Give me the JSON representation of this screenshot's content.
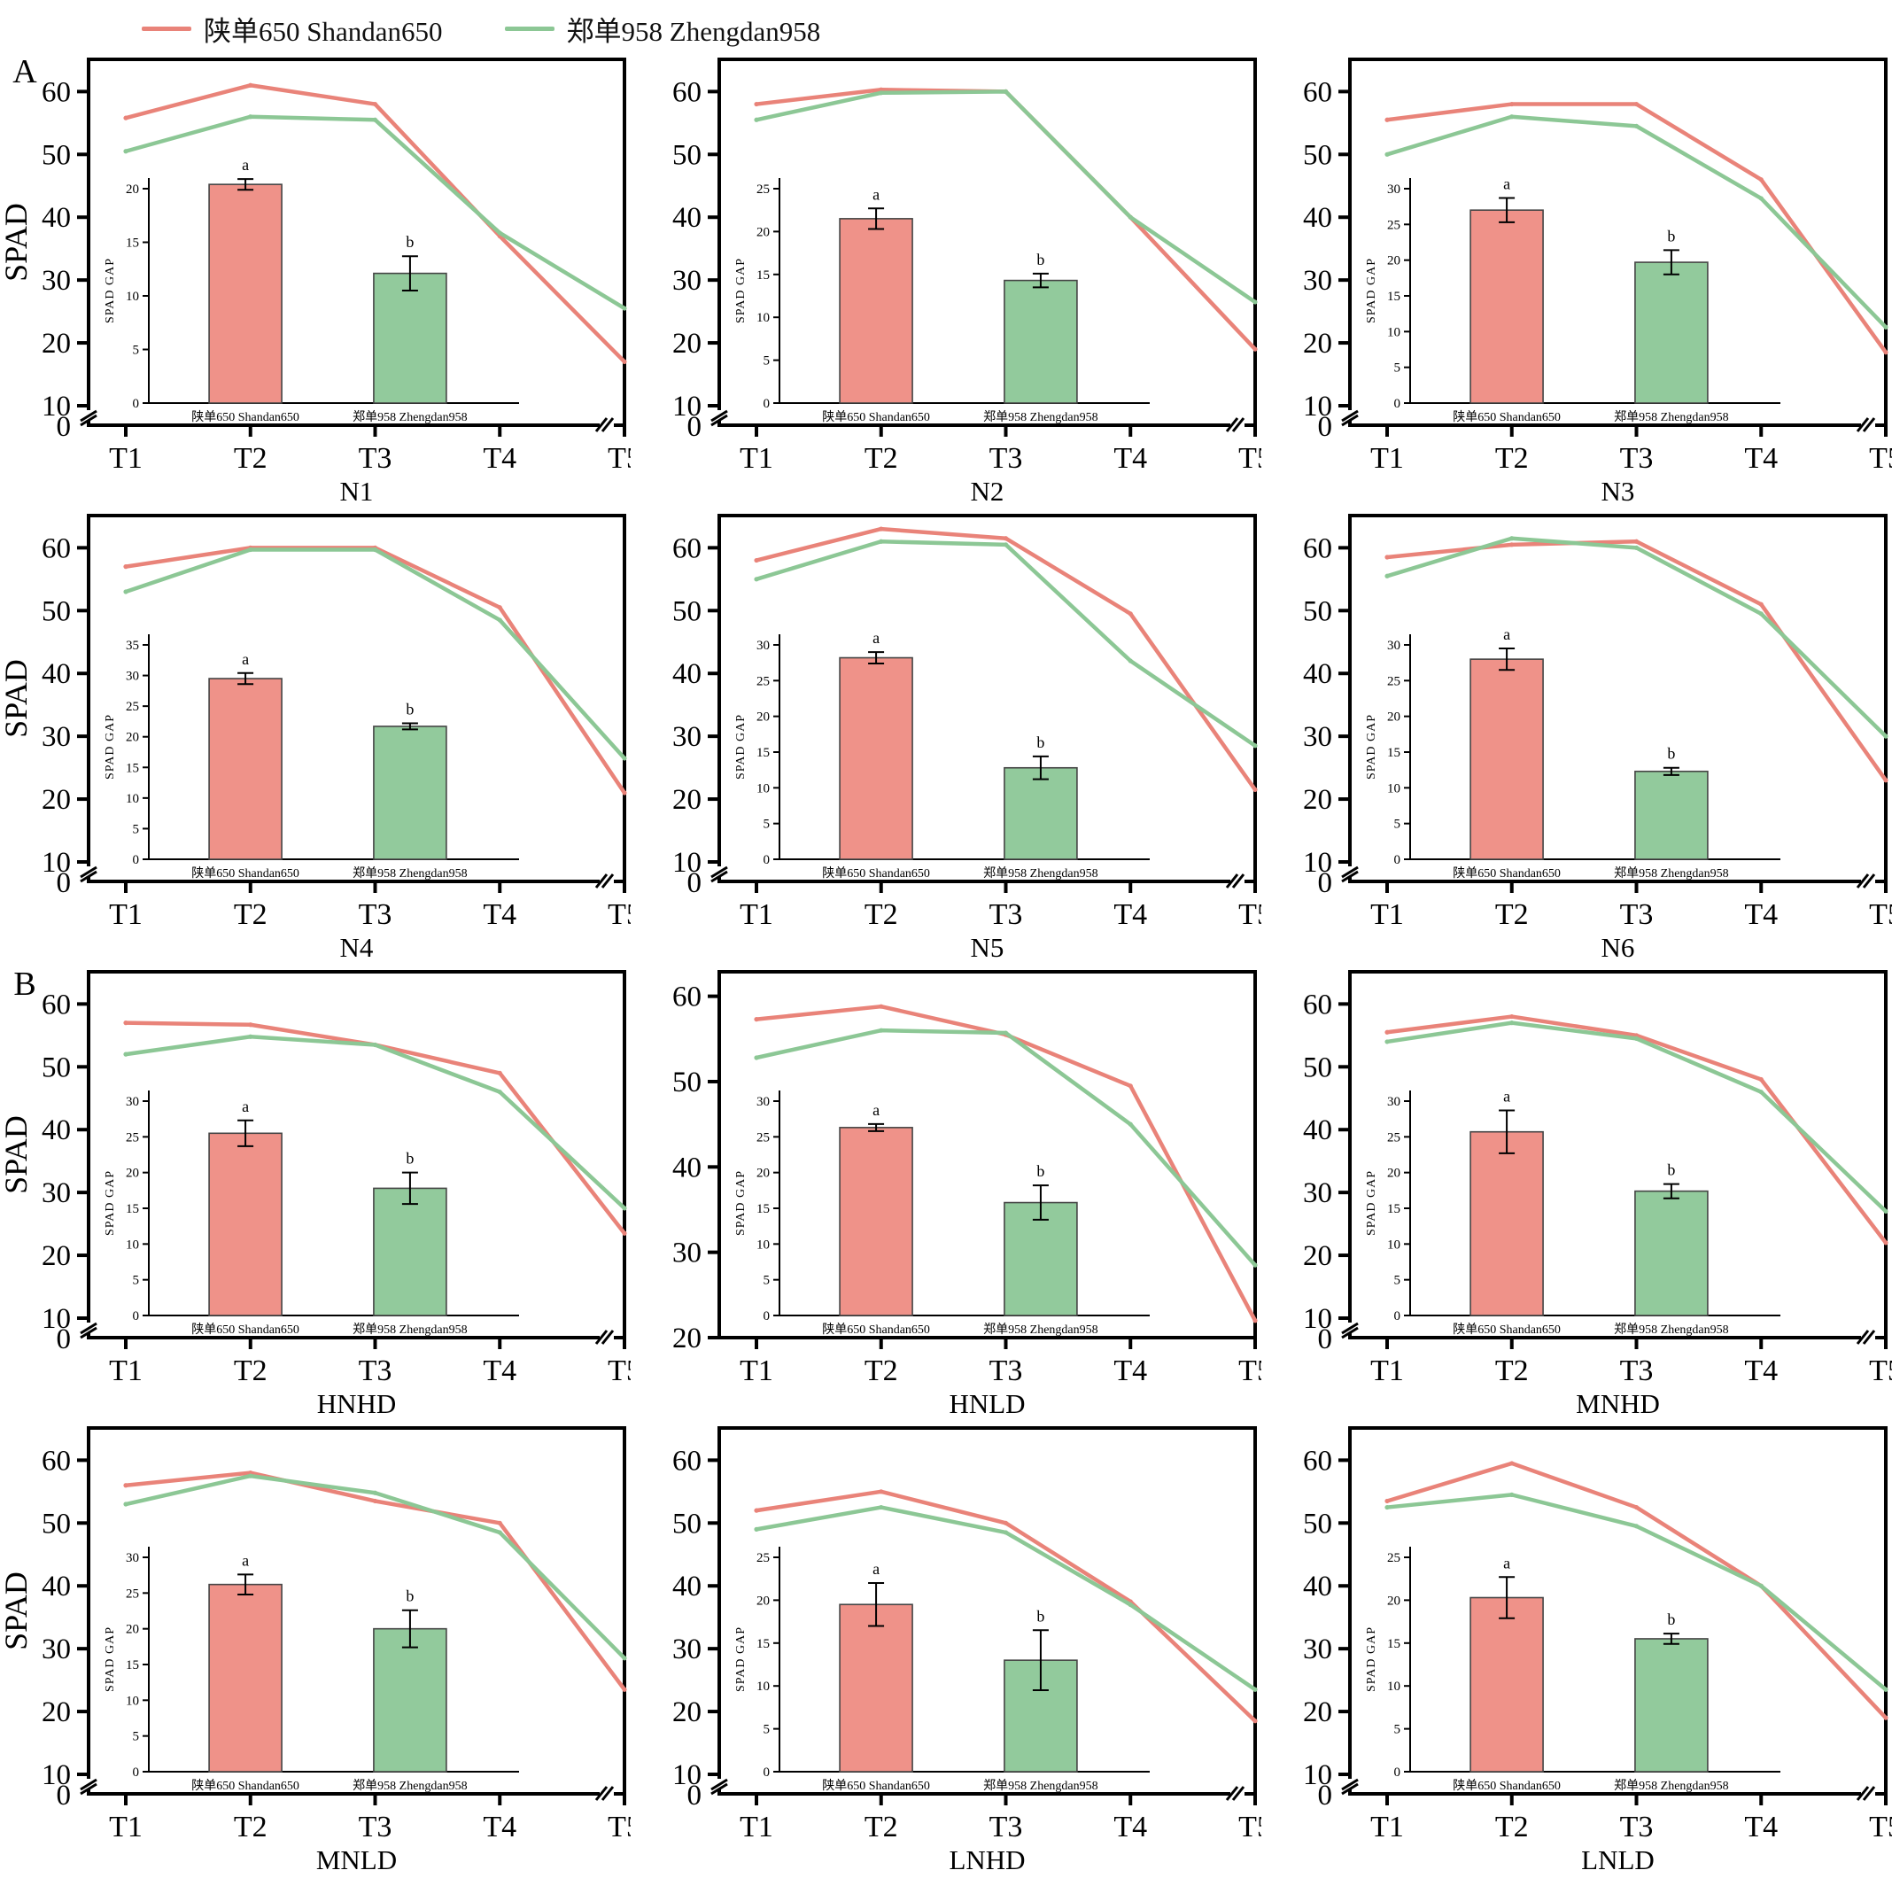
{
  "legend": {
    "entries": [
      {
        "label": "陕单650 Shandan650",
        "color": "#e98379"
      },
      {
        "label": "郑单958 Zhengdan958",
        "color": "#8cc795"
      }
    ]
  },
  "colors": {
    "shandan_line": "#e98379",
    "zhengdan_line": "#8cc795",
    "shandan_bar": "#ef9289",
    "zhengdan_bar": "#92ca9c",
    "bar_edge": "#454545",
    "axis": "#000000"
  },
  "axes": {
    "ylabel": "SPAD",
    "x_categories": [
      "T1",
      "T2",
      "T3",
      "T4",
      "T5"
    ],
    "inset_ylabel": "SPAD GAP",
    "inset_categories": [
      "陕单650 Shandan650",
      "郑单958 Zhengdan958"
    ],
    "sig_letters": [
      "a",
      "b"
    ]
  },
  "chart_data": [
    {
      "type": "line",
      "title": "N1",
      "panel": "A",
      "show_ylabel": true,
      "ylim": [
        10,
        60
      ],
      "broken_axis": true,
      "x": [
        "T1",
        "T2",
        "T3",
        "T4",
        "T5"
      ],
      "series": [
        {
          "name": "陕单650 Shandan650",
          "values": [
            55.8,
            61,
            58,
            37,
            17
          ]
        },
        {
          "name": "郑单958 Zhengdan958",
          "values": [
            50.5,
            56,
            55.5,
            37.5,
            25.5
          ]
        }
      ],
      "inset": {
        "type": "bar",
        "ylabel": "SPAD GAP",
        "ymax": 20,
        "bars": [
          {
            "label": "陕单650 Shandan650",
            "value": 20.4,
            "err": 0.5,
            "letter": "a"
          },
          {
            "label": "郑单958 Zhengdan958",
            "value": 12.1,
            "err": 1.6,
            "letter": "b"
          }
        ]
      }
    },
    {
      "type": "line",
      "title": "N2",
      "panel": null,
      "show_ylabel": false,
      "ylim": [
        10,
        60
      ],
      "broken_axis": true,
      "x": [
        "T1",
        "T2",
        "T3",
        "T4",
        "T5"
      ],
      "series": [
        {
          "name": "陕单650 Shandan650",
          "values": [
            58,
            60.3,
            60,
            40,
            19
          ]
        },
        {
          "name": "郑单958 Zhengdan958",
          "values": [
            55.5,
            59.8,
            60,
            40,
            26.5
          ]
        }
      ],
      "inset": {
        "type": "bar",
        "ylabel": "SPAD GAP",
        "ymax": 25,
        "bars": [
          {
            "label": "陕单650 Shandan650",
            "value": 21.5,
            "err": 1.2,
            "letter": "a"
          },
          {
            "label": "郑单958 Zhengdan958",
            "value": 14.3,
            "err": 0.8,
            "letter": "b"
          }
        ]
      }
    },
    {
      "type": "line",
      "title": "N3",
      "panel": null,
      "show_ylabel": false,
      "ylim": [
        10,
        60
      ],
      "broken_axis": true,
      "x": [
        "T1",
        "T2",
        "T3",
        "T4",
        "T5"
      ],
      "series": [
        {
          "name": "陕单650 Shandan650",
          "values": [
            55.5,
            58,
            58,
            46,
            18.5
          ]
        },
        {
          "name": "郑单958 Zhengdan958",
          "values": [
            50,
            56,
            54.5,
            43,
            22.5
          ]
        }
      ],
      "inset": {
        "type": "bar",
        "ylabel": "SPAD GAP",
        "ymax": 30,
        "bars": [
          {
            "label": "陕单650 Shandan650",
            "value": 27,
            "err": 1.7,
            "letter": "a"
          },
          {
            "label": "郑单958 Zhengdan958",
            "value": 19.7,
            "err": 1.7,
            "letter": "b"
          }
        ]
      }
    },
    {
      "type": "line",
      "title": "N4",
      "panel": null,
      "show_ylabel": true,
      "ylim": [
        10,
        60
      ],
      "broken_axis": true,
      "x": [
        "T1",
        "T2",
        "T3",
        "T4",
        "T5"
      ],
      "series": [
        {
          "name": "陕单650 Shandan650",
          "values": [
            57,
            60,
            60,
            50.5,
            21
          ]
        },
        {
          "name": "郑单958 Zhengdan958",
          "values": [
            53,
            59.7,
            59.7,
            48.5,
            26.5
          ]
        }
      ],
      "inset": {
        "type": "bar",
        "ylabel": "SPAD GAP",
        "ymax": 35,
        "bars": [
          {
            "label": "陕单650 Shandan650",
            "value": 29.5,
            "err": 0.9,
            "letter": "a"
          },
          {
            "label": "郑单958 Zhengdan958",
            "value": 21.7,
            "err": 0.5,
            "letter": "b"
          }
        ]
      }
    },
    {
      "type": "line",
      "title": "N5",
      "panel": null,
      "show_ylabel": false,
      "ylim": [
        10,
        60
      ],
      "broken_axis": true,
      "x": [
        "T1",
        "T2",
        "T3",
        "T4",
        "T5"
      ],
      "series": [
        {
          "name": "陕单650 Shandan650",
          "values": [
            58,
            63,
            61.5,
            49.5,
            21.5
          ]
        },
        {
          "name": "郑单958 Zhengdan958",
          "values": [
            55,
            61,
            60.5,
            42,
            28.5
          ]
        }
      ],
      "inset": {
        "type": "bar",
        "ylabel": "SPAD GAP",
        "ymax": 30,
        "bars": [
          {
            "label": "陕单650 Shandan650",
            "value": 28.2,
            "err": 0.8,
            "letter": "a"
          },
          {
            "label": "郑单958 Zhengdan958",
            "value": 12.8,
            "err": 1.6,
            "letter": "b"
          }
        ]
      }
    },
    {
      "type": "line",
      "title": "N6",
      "panel": null,
      "show_ylabel": false,
      "ylim": [
        10,
        60
      ],
      "broken_axis": true,
      "x": [
        "T1",
        "T2",
        "T3",
        "T4",
        "T5"
      ],
      "series": [
        {
          "name": "陕单650 Shandan650",
          "values": [
            58.5,
            60.5,
            61,
            51,
            23
          ]
        },
        {
          "name": "郑单958 Zhengdan958",
          "values": [
            55.5,
            61.5,
            60,
            49.5,
            30
          ]
        }
      ],
      "inset": {
        "type": "bar",
        "ylabel": "SPAD GAP",
        "ymax": 30,
        "bars": [
          {
            "label": "陕单650 Shandan650",
            "value": 28,
            "err": 1.5,
            "letter": "a"
          },
          {
            "label": "郑单958 Zhengdan958",
            "value": 12.3,
            "err": 0.5,
            "letter": "b"
          }
        ]
      }
    },
    {
      "type": "line",
      "title": "HNHD",
      "panel": "B",
      "show_ylabel": true,
      "ylim": [
        10,
        60
      ],
      "broken_axis": true,
      "x": [
        "T1",
        "T2",
        "T3",
        "T4",
        "T5"
      ],
      "series": [
        {
          "name": "陕单650 Shandan650",
          "values": [
            57,
            56.7,
            53.5,
            49,
            23.5
          ]
        },
        {
          "name": "郑单958 Zhengdan958",
          "values": [
            52,
            54.8,
            53.5,
            46,
            27.5
          ]
        }
      ],
      "inset": {
        "type": "bar",
        "ylabel": "SPAD GAP",
        "ymax": 30,
        "bars": [
          {
            "label": "陕单650 Shandan650",
            "value": 25.5,
            "err": 1.8,
            "letter": "a"
          },
          {
            "label": "郑单958 Zhengdan958",
            "value": 17.8,
            "err": 2.2,
            "letter": "b"
          }
        ]
      }
    },
    {
      "type": "line",
      "title": "HNLD",
      "panel": null,
      "show_ylabel": false,
      "ylim": [
        20,
        60
      ],
      "broken_axis": false,
      "x": [
        "T1",
        "T2",
        "T3",
        "T4",
        "T5"
      ],
      "series": [
        {
          "name": "陕单650 Shandan650",
          "values": [
            57.3,
            58.8,
            55.5,
            49.5,
            22
          ]
        },
        {
          "name": "郑单958 Zhengdan958",
          "values": [
            52.8,
            56,
            55.7,
            45,
            28.5
          ]
        }
      ],
      "inset": {
        "type": "bar",
        "ylabel": "SPAD GAP",
        "ymax": 30,
        "bars": [
          {
            "label": "陕单650 Shandan650",
            "value": 26.3,
            "err": 0.5,
            "letter": "a"
          },
          {
            "label": "郑单958 Zhengdan958",
            "value": 15.8,
            "err": 2.4,
            "letter": "b"
          }
        ]
      }
    },
    {
      "type": "line",
      "title": "MNHD",
      "panel": null,
      "show_ylabel": false,
      "ylim": [
        10,
        60
      ],
      "broken_axis": true,
      "x": [
        "T1",
        "T2",
        "T3",
        "T4",
        "T5"
      ],
      "series": [
        {
          "name": "陕单650 Shandan650",
          "values": [
            55.5,
            58,
            55,
            48,
            22
          ]
        },
        {
          "name": "郑单958 Zhengdan958",
          "values": [
            54,
            57,
            54.5,
            46,
            27
          ]
        }
      ],
      "inset": {
        "type": "bar",
        "ylabel": "SPAD GAP",
        "ymax": 30,
        "bars": [
          {
            "label": "陕单650 Shandan650",
            "value": 25.7,
            "err": 3,
            "letter": "a"
          },
          {
            "label": "郑单958 Zhengdan958",
            "value": 17.4,
            "err": 1,
            "letter": "b"
          }
        ]
      }
    },
    {
      "type": "line",
      "title": "MNLD",
      "panel": null,
      "show_ylabel": true,
      "ylim": [
        10,
        60
      ],
      "broken_axis": true,
      "x": [
        "T1",
        "T2",
        "T3",
        "T4",
        "T5"
      ],
      "series": [
        {
          "name": "陕单650 Shandan650",
          "values": [
            56,
            58,
            53.5,
            50,
            23.5
          ]
        },
        {
          "name": "郑单958 Zhengdan958",
          "values": [
            53,
            57.5,
            54.8,
            48.5,
            28.5
          ]
        }
      ],
      "inset": {
        "type": "bar",
        "ylabel": "SPAD GAP",
        "ymax": 30,
        "bars": [
          {
            "label": "陕单650 Shandan650",
            "value": 26.2,
            "err": 1.4,
            "letter": "a"
          },
          {
            "label": "郑单958 Zhengdan958",
            "value": 20,
            "err": 2.6,
            "letter": "b"
          }
        ]
      }
    },
    {
      "type": "line",
      "title": "LNHD",
      "panel": null,
      "show_ylabel": false,
      "ylim": [
        10,
        60
      ],
      "broken_axis": true,
      "x": [
        "T1",
        "T2",
        "T3",
        "T4",
        "T5"
      ],
      "series": [
        {
          "name": "陕单650 Shandan650",
          "values": [
            52,
            55,
            50,
            37.5,
            18.5
          ]
        },
        {
          "name": "郑单958 Zhengdan958",
          "values": [
            49,
            52.5,
            48.5,
            37,
            23.5
          ]
        }
      ],
      "inset": {
        "type": "bar",
        "ylabel": "SPAD GAP",
        "ymax": 25,
        "bars": [
          {
            "label": "陕单650 Shandan650",
            "value": 19.5,
            "err": 2.5,
            "letter": "a"
          },
          {
            "label": "郑单958 Zhengdan958",
            "value": 13,
            "err": 3.5,
            "letter": "b"
          }
        ]
      }
    },
    {
      "type": "line",
      "title": "LNLD",
      "panel": null,
      "show_ylabel": false,
      "ylim": [
        10,
        60
      ],
      "broken_axis": true,
      "x": [
        "T1",
        "T2",
        "T3",
        "T4",
        "T5"
      ],
      "series": [
        {
          "name": "陕单650 Shandan650",
          "values": [
            53.5,
            59.5,
            52.5,
            40,
            19
          ]
        },
        {
          "name": "郑单958 Zhengdan958",
          "values": [
            52.5,
            54.5,
            49.5,
            40,
            23.5
          ]
        }
      ],
      "inset": {
        "type": "bar",
        "ylabel": "SPAD GAP",
        "ymax": 25,
        "bars": [
          {
            "label": "陕单650 Shandan650",
            "value": 20.3,
            "err": 2.4,
            "letter": "a"
          },
          {
            "label": "郑单958 Zhengdan958",
            "value": 15.5,
            "err": 0.6,
            "letter": "b"
          }
        ]
      }
    }
  ]
}
